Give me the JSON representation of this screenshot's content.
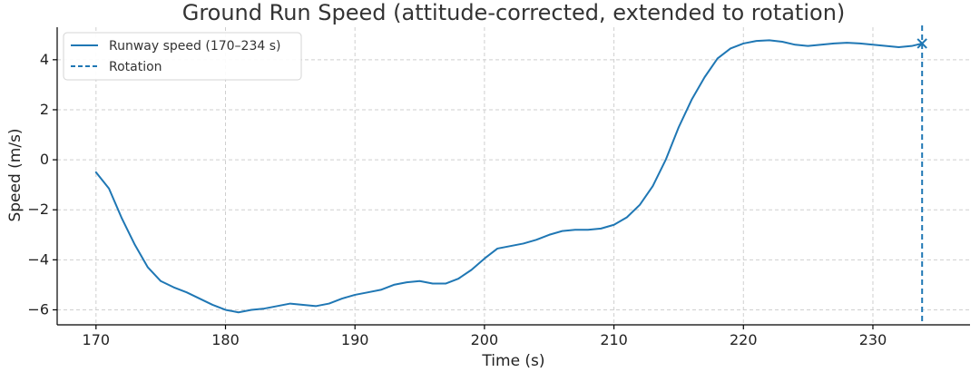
{
  "chart_data": {
    "type": "line",
    "title": "Ground Run Speed (attitude-corrected, extended to rotation)",
    "xlabel": "Time (s)",
    "ylabel": "Speed (m/s)",
    "xlim": [
      167,
      237.5
    ],
    "ylim": [
      -6.6,
      5.3
    ],
    "xticks": [
      170,
      180,
      190,
      200,
      210,
      220,
      230
    ],
    "yticks": [
      -6,
      -4,
      -2,
      0,
      2,
      4
    ],
    "xtick_labels": [
      "170",
      "180",
      "190",
      "200",
      "210",
      "220",
      "230"
    ],
    "ytick_labels": [
      "−6",
      "−4",
      "−2",
      "0",
      "2",
      "4"
    ],
    "grid": true,
    "legend_position": "top-left",
    "series": [
      {
        "name": "Runway speed (170–234 s)",
        "color": "#1f77b4",
        "style": "solid",
        "x": [
          170,
          171,
          172,
          173,
          174,
          175,
          176,
          177,
          178,
          179,
          180,
          181,
          182,
          183,
          184,
          185,
          186,
          187,
          188,
          189,
          190,
          191,
          192,
          193,
          194,
          195,
          196,
          197,
          198,
          199,
          200,
          201,
          202,
          203,
          204,
          205,
          206,
          207,
          208,
          209,
          210,
          211,
          212,
          213,
          214,
          215,
          216,
          217,
          218,
          219,
          220,
          221,
          222,
          223,
          224,
          225,
          226,
          227,
          228,
          229,
          230,
          231,
          232,
          233,
          233.8
        ],
        "y": [
          -0.5,
          -1.15,
          -2.35,
          -3.4,
          -4.3,
          -4.85,
          -5.1,
          -5.3,
          -5.55,
          -5.8,
          -6.0,
          -6.1,
          -6.0,
          -5.95,
          -5.85,
          -5.75,
          -5.8,
          -5.85,
          -5.75,
          -5.55,
          -5.4,
          -5.3,
          -5.2,
          -5.0,
          -4.9,
          -4.85,
          -4.95,
          -4.95,
          -4.75,
          -4.4,
          -3.95,
          -3.55,
          -3.45,
          -3.35,
          -3.2,
          -3.0,
          -2.85,
          -2.8,
          -2.8,
          -2.75,
          -2.6,
          -2.3,
          -1.8,
          -1.05,
          0.0,
          1.3,
          2.4,
          3.3,
          4.05,
          4.45,
          4.65,
          4.75,
          4.78,
          4.72,
          4.6,
          4.55,
          4.6,
          4.65,
          4.68,
          4.65,
          4.6,
          4.55,
          4.5,
          4.55,
          4.65
        ]
      }
    ],
    "rotation": {
      "name": "Rotation",
      "x": 233.8,
      "y": 4.65,
      "marker": "x",
      "style": "dashed",
      "color": "#1f77b4"
    }
  }
}
